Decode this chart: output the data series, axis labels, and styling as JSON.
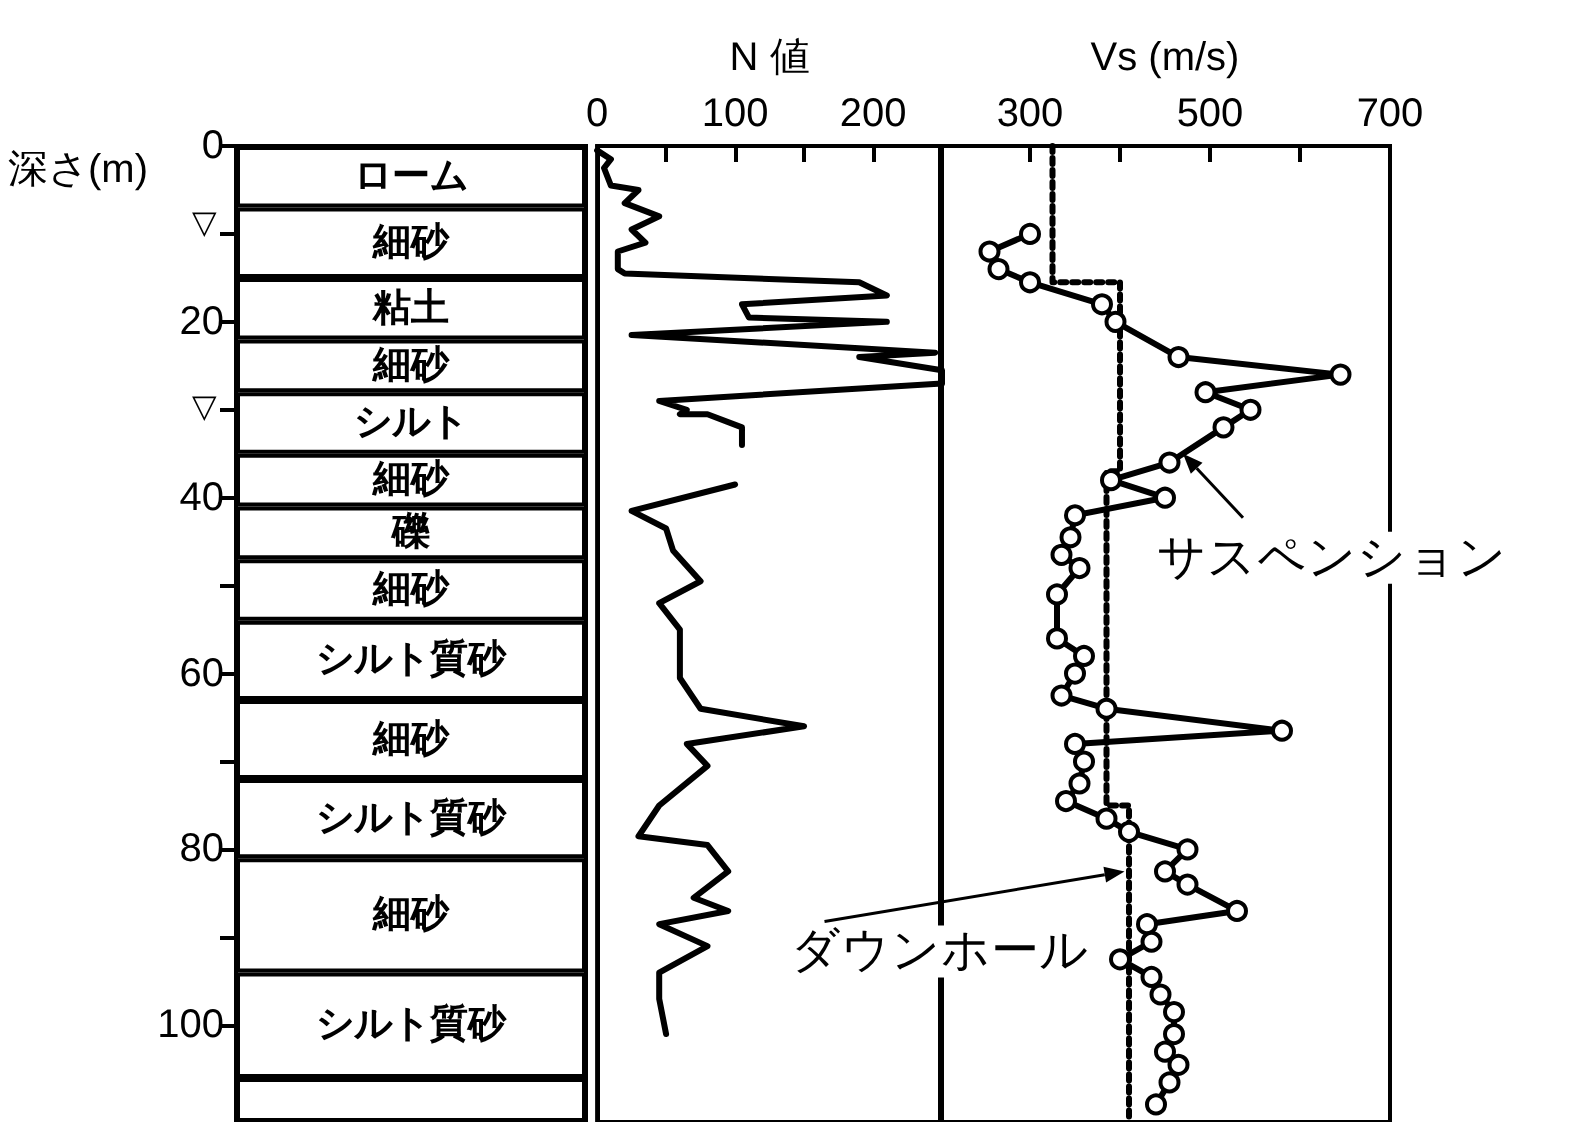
{
  "chart_data": [
    {
      "type": "bar",
      "ylabel": "深さ(m)",
      "categories": [
        null
      ],
      "stacked": true,
      "grid": false,
      "tick_labels": "y",
      "ylim": [
        111,
        0
      ],
      "yticks": [
        0,
        {
          "value": 10,
          "label": null
        },
        20,
        {
          "value": 30,
          "label": null
        },
        40,
        {
          "value": 50,
          "label": null
        },
        60,
        {
          "value": 70,
          "label": null
        },
        80,
        {
          "value": 90,
          "label": null
        },
        100
      ],
      "annotations": [
        "▽",
        "▽"
      ],
      "series": [
        {
          "name": "ローム",
          "color": "#ffffff",
          "values": [
            7
          ]
        },
        {
          "name": "細砂",
          "color": "#ffffff",
          "values": [
            8
          ]
        },
        {
          "name": "粘土",
          "color": "#ffffff",
          "values": [
            7
          ]
        },
        {
          "name": "細砂",
          "color": "#ffffff",
          "values": [
            6
          ]
        },
        {
          "name": "シルト",
          "color": "#ffffff",
          "values": [
            7
          ]
        },
        {
          "name": "細砂",
          "color": "#ffffff",
          "values": [
            6
          ]
        },
        {
          "name": "礫",
          "color": "#ffffff",
          "values": [
            6
          ]
        },
        {
          "name": "細砂",
          "color": "#ffffff",
          "values": [
            7
          ]
        },
        {
          "name": "シルト質砂",
          "color": "#ffffff",
          "values": [
            9
          ]
        },
        {
          "name": "細砂",
          "color": "#ffffff",
          "values": [
            9
          ]
        },
        {
          "name": "シルト質砂",
          "color": "#ffffff",
          "values": [
            9
          ]
        },
        {
          "name": "細砂",
          "color": "#ffffff",
          "values": [
            13
          ]
        },
        {
          "name": "シルト質砂",
          "color": "#ffffff",
          "values": [
            12
          ]
        },
        {
          "color": "#ffffff",
          "values": [
            5
          ]
        }
      ]
    },
    {
      "type": "line",
      "xlabel": "N 値",
      "grid": false,
      "tick_labels": "x",
      "xlim": [
        0,
        250
      ],
      "xticks": [
        0,
        {
          "value": 50,
          "label": null
        },
        100,
        {
          "value": 150,
          "label": null
        },
        200
      ],
      "ylim": [
        111,
        0
      ],
      "series": [
        {
          "color": "#000000",
          "marker": "none",
          "line_style": "solid",
          "x": [
            0,
            10,
            5,
            10,
            30,
            20,
            45,
            25,
            35,
            15,
            15,
            20,
            190,
            210,
            105,
            110,
            210,
            25,
            245,
            190,
            250,
            250,
            45,
            65,
            60,
            80,
            105,
            105,
            null,
            100,
            25,
            50,
            55,
            75,
            45,
            60,
            60,
            75,
            150,
            65,
            80,
            45,
            30,
            80,
            95,
            70,
            95,
            45,
            80,
            45,
            45,
            50
          ],
          "values": [
            0.5,
            1.5,
            2.5,
            4.5,
            5,
            6.5,
            8,
            9.5,
            11,
            12,
            14,
            14.5,
            15.5,
            17,
            18,
            19.5,
            20,
            21.5,
            23.5,
            24,
            25.5,
            27,
            29,
            30,
            30.5,
            30.5,
            32,
            34,
            null,
            38.5,
            41.5,
            43.5,
            46,
            49.5,
            52,
            55,
            60.5,
            64,
            66,
            68,
            70.5,
            75,
            78.5,
            79.5,
            82.5,
            85.5,
            87,
            88.5,
            91,
            94,
            97,
            101
          ]
        }
      ]
    },
    {
      "type": "line",
      "xlabel": "Vs (m/s)",
      "grid": false,
      "tick_labels": "x",
      "xlim": [
        200,
        700
      ],
      "xticks": [
        300,
        {
          "value": 400,
          "label": null
        },
        500,
        {
          "value": 600,
          "label": null
        },
        700
      ],
      "ylim": [
        111,
        0
      ],
      "annotations": [
        {
          "text": "サスペンション",
          "x": 470,
          "y": 35
        },
        {
          "text": "ダウンホール",
          "x": 405,
          "y": 82.5
        }
      ],
      "series": [
        {
          "color": "#000000",
          "marker": "circle",
          "line_style": "solid",
          "x": [
            300,
            255,
            265,
            300,
            380,
            395,
            465,
            645,
            495,
            545,
            515,
            455,
            390,
            450,
            350,
            345,
            335,
            355,
            330,
            330,
            360,
            350,
            335,
            385,
            580,
            350,
            360,
            355,
            340,
            385,
            410,
            475,
            450,
            475,
            530,
            430,
            435,
            400,
            435,
            445,
            460,
            460,
            450,
            465,
            455,
            440
          ],
          "values": [
            10,
            12,
            14,
            15.5,
            18,
            20,
            24,
            26,
            28,
            30,
            32,
            36,
            38,
            40,
            42,
            44.5,
            46.5,
            48,
            51,
            56,
            58,
            60,
            62.5,
            64,
            66.5,
            68,
            70,
            72.5,
            74.5,
            76.5,
            78,
            80,
            82.5,
            84,
            87,
            88.5,
            90.5,
            92.5,
            94.5,
            96.5,
            98.5,
            101,
            103,
            104.5,
            106.5,
            109
          ]
        },
        {
          "color": "#000000",
          "marker": "none",
          "line_style": "dotted",
          "x": [
            325,
            325,
            400,
            400,
            385,
            385,
            410,
            410
          ],
          "values": [
            0,
            15.5,
            15.5,
            37,
            37,
            75,
            75,
            111
          ]
        }
      ]
    }
  ]
}
